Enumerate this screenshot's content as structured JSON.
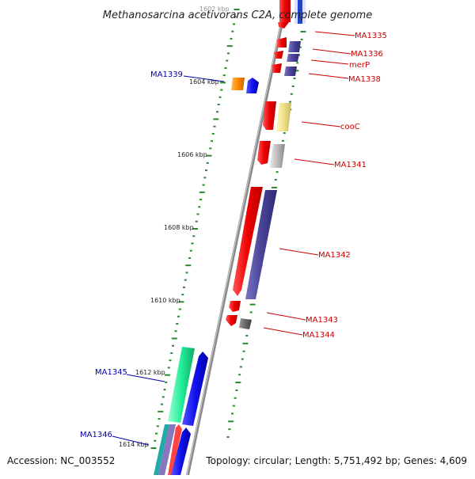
{
  "title": "Methanosarcina acetivorans C2A, complete genome",
  "footer": {
    "accession": "Accession: NC_003552",
    "topology": "Topology: circular; Length: 5,751,492 bp; Genes: 4,609"
  },
  "axis": {
    "start_kbp": 1602,
    "end_kbp": 1614,
    "tick_labels": [
      {
        "kbp": 1602,
        "text": "1602 kbp"
      },
      {
        "kbp": 1604,
        "text": "1604 kbp"
      },
      {
        "kbp": 1606,
        "text": "1606 kbp"
      },
      {
        "kbp": 1608,
        "text": "1608 kbp"
      },
      {
        "kbp": 1610,
        "text": "1610 kbp"
      },
      {
        "kbp": 1612,
        "text": "1612 kbp"
      },
      {
        "kbp": 1614,
        "text": "1614 kbp"
      }
    ]
  },
  "colors": {
    "backbone": "#8a8a8a",
    "tick": "#2a8a2a",
    "cds_red": "#ee1111",
    "cds_navy": "#4a4499",
    "cds_yellow": "#eee08a",
    "cds_grey": "#bbbbbb",
    "cds_darkgrey": "#666666",
    "cds_orange": "#ff8800",
    "cds_blue": "#1111ee",
    "cds_green": "#22ee99",
    "label_red": "#cc0000",
    "label_blue": "#0000aa"
  },
  "genes": [
    {
      "name": "MA1335",
      "side": "right",
      "kbp": 1602.3,
      "color": "red"
    },
    {
      "name": "MA1336",
      "side": "right",
      "kbp": 1603.0,
      "color": "red"
    },
    {
      "name": "merP",
      "side": "right",
      "kbp": 1603.3,
      "color": "red"
    },
    {
      "name": "MA1338",
      "side": "right",
      "kbp": 1603.6,
      "color": "red"
    },
    {
      "name": "MA1339",
      "side": "left",
      "kbp": 1604.0,
      "color": "blue"
    },
    {
      "name": "cooC",
      "side": "right",
      "kbp": 1605.0,
      "color": "red"
    },
    {
      "name": "MA1341",
      "side": "right",
      "kbp": 1606.1,
      "color": "red"
    },
    {
      "name": "MA1342",
      "side": "right",
      "kbp": 1608.6,
      "color": "red"
    },
    {
      "name": "MA1343",
      "side": "right",
      "kbp": 1610.5,
      "color": "red"
    },
    {
      "name": "MA1344",
      "side": "right",
      "kbp": 1610.9,
      "color": "red"
    },
    {
      "name": "MA1345",
      "side": "left",
      "kbp": 1612.0,
      "color": "blue"
    },
    {
      "name": "MA1346",
      "side": "left",
      "kbp": 1613.8,
      "color": "blue"
    }
  ]
}
